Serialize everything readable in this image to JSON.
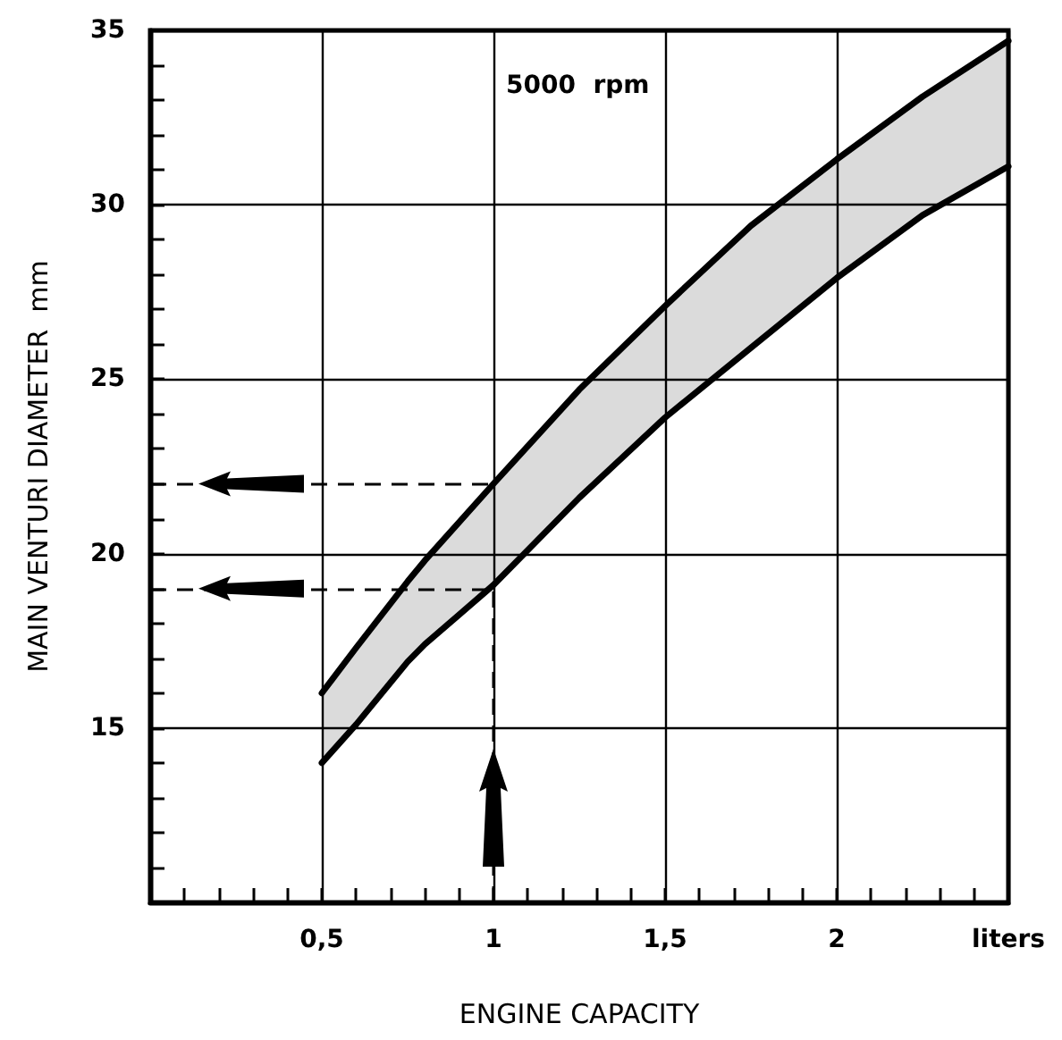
{
  "chart_data": {
    "type": "line",
    "xlabel": "ENGINE CAPACITY",
    "ylabel": "MAIN VENTURI DIAMETER  mm",
    "annotations": [
      "5000  rpm"
    ],
    "x": [
      0.5,
      0.6,
      0.75,
      0.8,
      1,
      1.25,
      1.5,
      1.75,
      2,
      2.25,
      2.5
    ],
    "series": [
      {
        "color": "#000000",
        "values": [
          16,
          17.3,
          19.2,
          19.8,
          22,
          24.7,
          27.1,
          29.4,
          31.3,
          33.1,
          34.7
        ],
        "upper": [
          16,
          17.3,
          19.2,
          19.8,
          22,
          24.7,
          27.1,
          29.4,
          31.3,
          33.1,
          34.7
        ],
        "lower": [
          14,
          15.1,
          16.9,
          17.4,
          19.1,
          21.6,
          23.9,
          25.9,
          27.9,
          29.7,
          31.1
        ]
      },
      {
        "color": "#000000",
        "values": [
          14,
          15.1,
          16.9,
          17.4,
          19.1,
          21.6,
          23.9,
          25.9,
          27.9,
          29.7,
          31.1
        ]
      }
    ],
    "xlim": [
      0,
      2.5
    ],
    "ylim": [
      10,
      35
    ],
    "xticks": [
      {
        "value": 0.1,
        "label": null
      },
      {
        "value": 0.2,
        "label": null
      },
      {
        "value": 0.3,
        "label": null
      },
      {
        "value": 0.4,
        "label": null
      },
      {
        "value": 0.5,
        "label": "0,5"
      },
      {
        "value": 0.6,
        "label": null
      },
      {
        "value": 0.7,
        "label": null
      },
      {
        "value": 0.8,
        "label": null
      },
      {
        "value": 0.9,
        "label": null
      },
      1,
      {
        "value": 1.1,
        "label": null
      },
      {
        "value": 1.2,
        "label": null
      },
      {
        "value": 1.3,
        "label": null
      },
      {
        "value": 1.4,
        "label": null
      },
      {
        "value": 1.5,
        "label": "1,5"
      },
      {
        "value": 1.6,
        "label": null
      },
      {
        "value": 1.7,
        "label": null
      },
      {
        "value": 1.8,
        "label": null
      },
      {
        "value": 1.9,
        "label": null
      },
      2,
      {
        "value": 2.1,
        "label": null
      },
      {
        "value": 2.2,
        "label": null
      },
      {
        "value": 2.3,
        "label": null
      },
      {
        "value": 2.4,
        "label": null
      },
      {
        "value": 2.5,
        "label": "liters"
      }
    ],
    "yticks": [
      {
        "value": 11,
        "label": null
      },
      {
        "value": 12,
        "label": null
      },
      {
        "value": 13,
        "label": null
      },
      {
        "value": 14,
        "label": null
      },
      15,
      {
        "value": 16,
        "label": null
      },
      {
        "value": 17,
        "label": null
      },
      {
        "value": 18,
        "label": null
      },
      {
        "value": 19,
        "label": null
      },
      20,
      {
        "value": 21,
        "label": null
      },
      {
        "value": 22,
        "label": null
      },
      {
        "value": 23,
        "label": null
      },
      {
        "value": 24,
        "label": null
      },
      25,
      {
        "value": 26,
        "label": null
      },
      {
        "value": 27,
        "label": null
      },
      {
        "value": 28,
        "label": null
      },
      {
        "value": 29,
        "label": null
      },
      30,
      {
        "value": 31,
        "label": null
      },
      {
        "value": 32,
        "label": null
      },
      {
        "value": 33,
        "label": null
      },
      {
        "value": 34,
        "label": null
      },
      35
    ],
    "ref_lines": [
      {
        "axis": "y",
        "value": 22,
        "line_style": "dashed"
      },
      {
        "axis": "y",
        "value": 19,
        "line_style": "dashed"
      },
      {
        "axis": "x",
        "value": 1,
        "line_style": "dashed"
      }
    ],
    "grid": true,
    "marker": "none",
    "line_style": "solid"
  }
}
